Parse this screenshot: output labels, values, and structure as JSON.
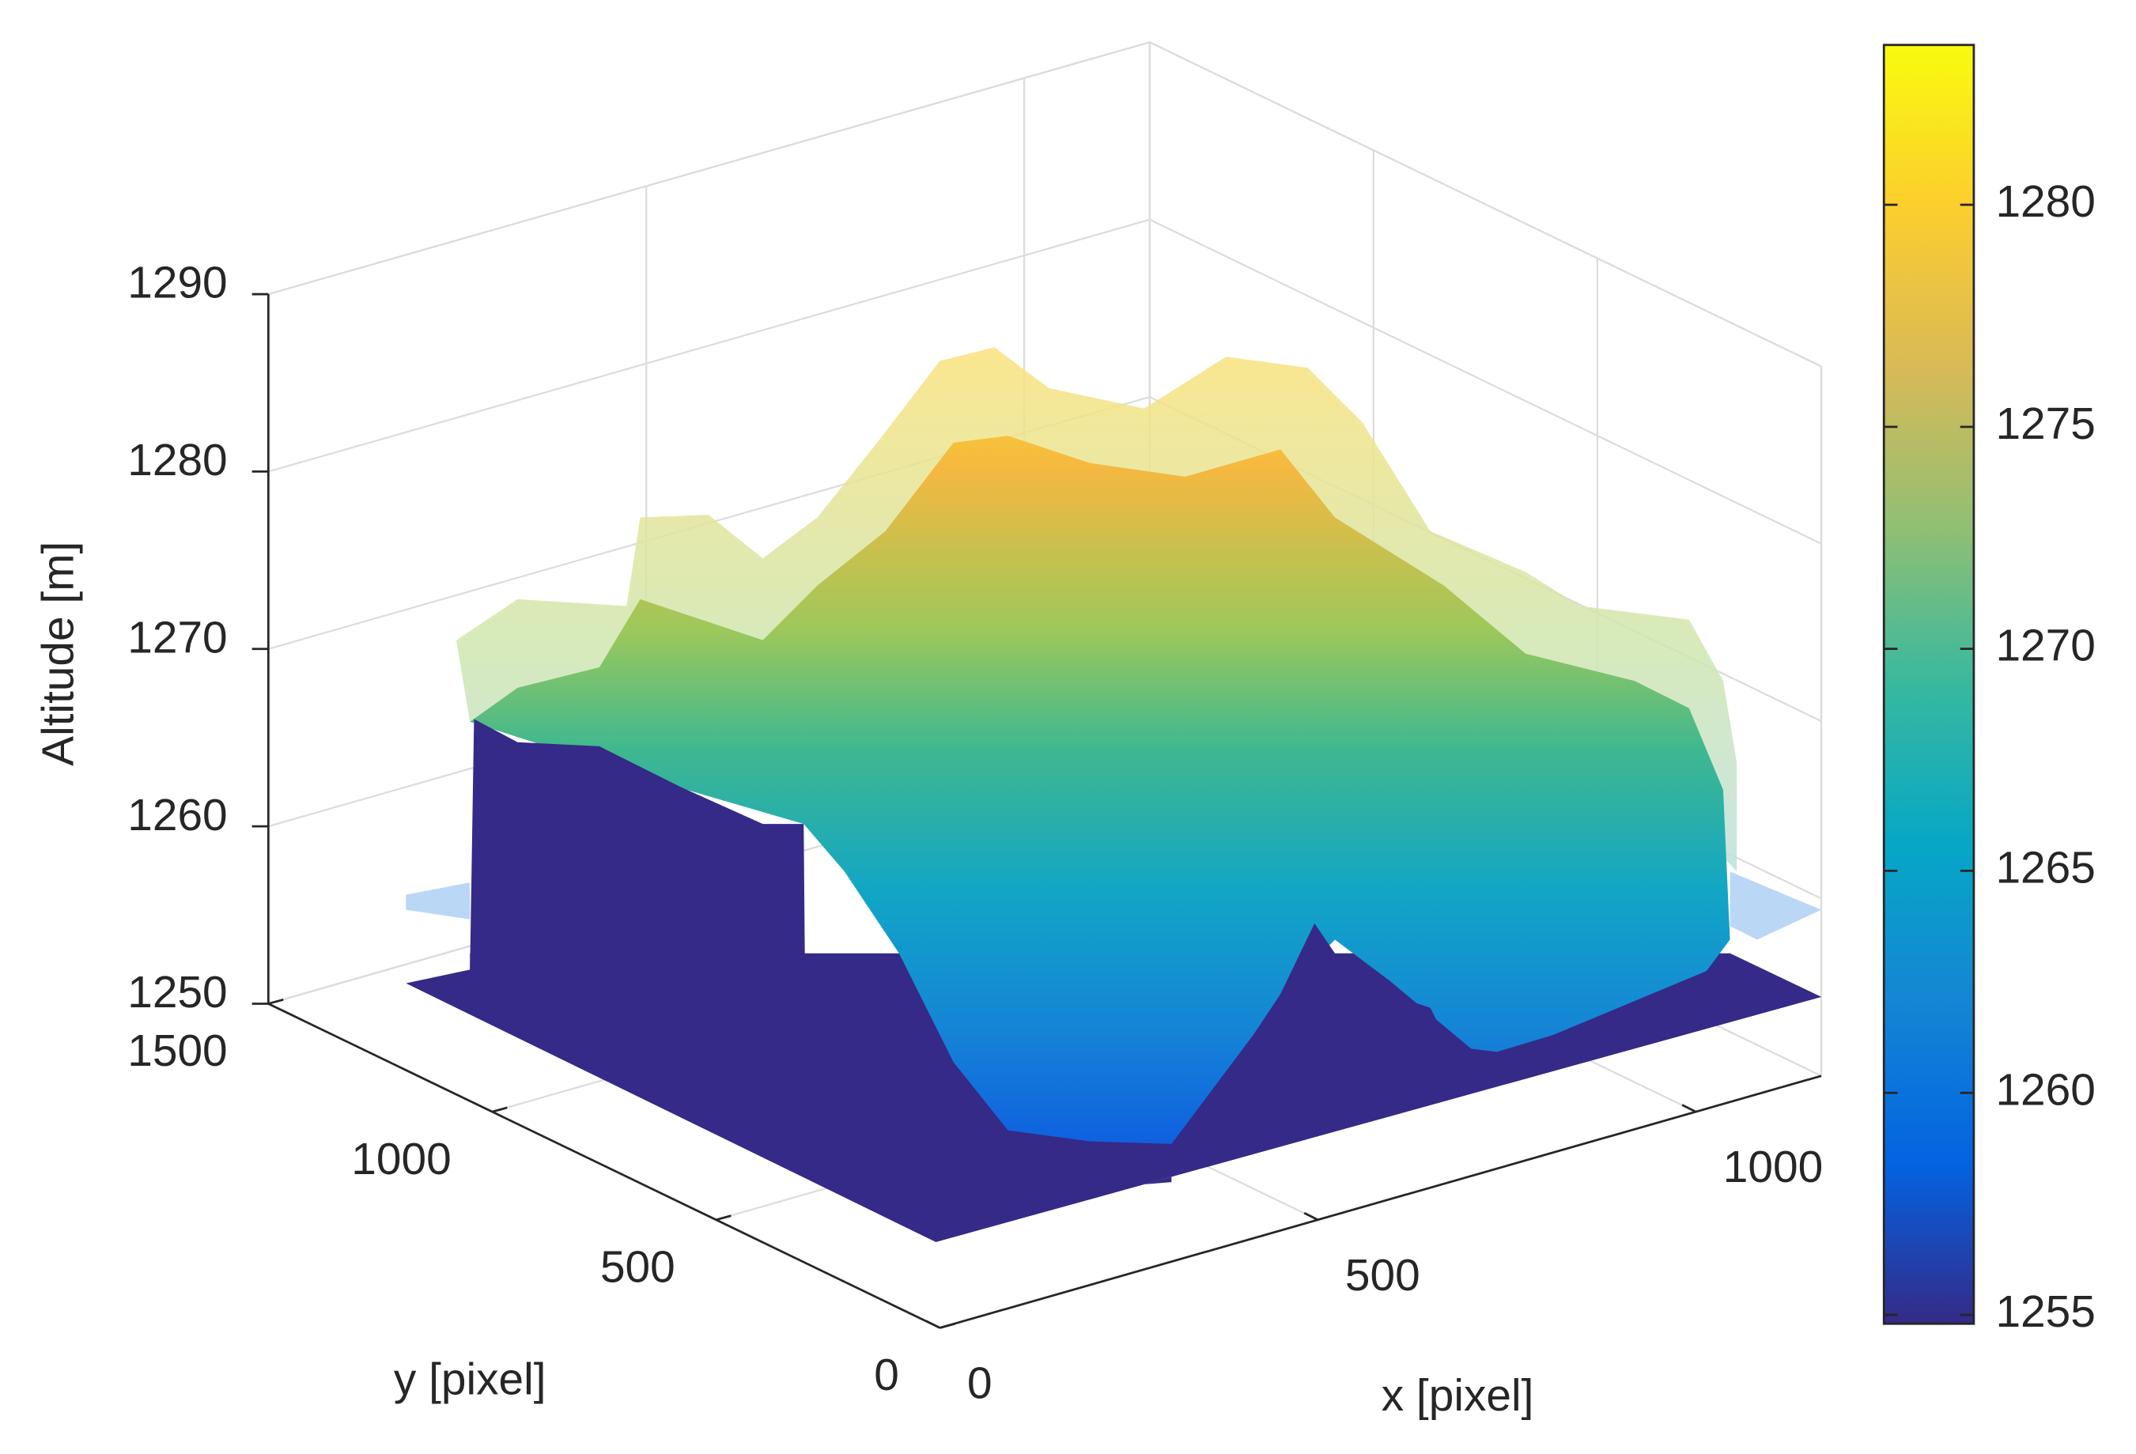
{
  "chart_data": {
    "type": "surface",
    "xlabel": "x [pixel]",
    "ylabel": "y [pixel]",
    "zlabel": "Altitude [m]",
    "xlim": [
      0,
      1166
    ],
    "ylim": [
      0,
      1500
    ],
    "zlim": [
      1250,
      1290
    ],
    "xticks": [
      0,
      500,
      1000
    ],
    "yticks": [
      0,
      500,
      1000,
      1500
    ],
    "zticks": [
      1250,
      1260,
      1270,
      1280,
      1290
    ],
    "grid": true,
    "colormap": "parula",
    "colorbar": {
      "clim": [
        1254.8,
        1283.6
      ],
      "ticks": [
        1255,
        1260,
        1265,
        1270,
        1275,
        1280
      ]
    }
  }
}
